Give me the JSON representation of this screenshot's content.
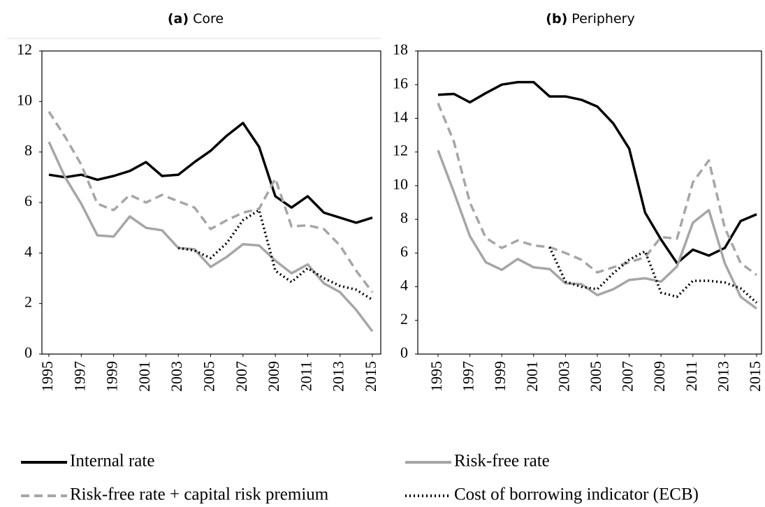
{
  "chart_data": [
    {
      "type": "line",
      "panel": "(a)",
      "title": "Core",
      "x": [
        1995,
        1996,
        1997,
        1998,
        1999,
        2000,
        2001,
        2002,
        2003,
        2004,
        2005,
        2006,
        2007,
        2008,
        2009,
        2010,
        2011,
        2012,
        2013,
        2014,
        2015
      ],
      "xlim": [
        1995,
        2015
      ],
      "xticks": [
        1995,
        1997,
        1999,
        2001,
        2003,
        2005,
        2007,
        2009,
        2011,
        2013,
        2015
      ],
      "ylim": [
        0,
        12
      ],
      "yticks": [
        0,
        2,
        4,
        6,
        8,
        10,
        12
      ],
      "series": [
        {
          "name": "Internal rate",
          "color": "#000000",
          "dash": "solid",
          "values": [
            7.1,
            7.0,
            7.1,
            6.9,
            7.05,
            7.25,
            7.6,
            7.05,
            7.1,
            7.6,
            8.05,
            8.65,
            9.15,
            8.2,
            6.25,
            5.8,
            6.25,
            5.6,
            5.4,
            5.2,
            5.4
          ]
        },
        {
          "name": "Risk-free rate",
          "color": "#a6a6a6",
          "dash": "solid",
          "values": [
            8.4,
            7.0,
            5.95,
            4.7,
            4.65,
            5.45,
            5.0,
            4.9,
            4.2,
            4.15,
            3.45,
            3.85,
            4.35,
            4.3,
            3.7,
            3.2,
            3.55,
            2.8,
            2.45,
            1.75,
            0.9
          ]
        },
        {
          "name": "Risk-free rate + capital risk premium",
          "color": "#a6a6a6",
          "dash": "dashed",
          "values": [
            9.6,
            8.6,
            7.5,
            5.95,
            5.7,
            6.3,
            6.0,
            6.3,
            6.05,
            5.8,
            4.95,
            5.3,
            5.6,
            5.75,
            6.95,
            5.05,
            5.1,
            4.95,
            4.3,
            3.3,
            2.45
          ]
        },
        {
          "name": "Cost of borrowing indicator (ECB)",
          "color": "#000000",
          "dash": "dotted",
          "values": [
            null,
            null,
            null,
            null,
            null,
            null,
            null,
            null,
            4.2,
            4.1,
            3.8,
            4.4,
            5.3,
            5.7,
            3.3,
            2.85,
            3.4,
            3.0,
            2.7,
            2.55,
            2.15
          ]
        }
      ]
    },
    {
      "type": "line",
      "panel": "(b)",
      "title": "Periphery",
      "x": [
        1995,
        1996,
        1997,
        1998,
        1999,
        2000,
        2001,
        2002,
        2003,
        2004,
        2005,
        2006,
        2007,
        2008,
        2009,
        2010,
        2011,
        2012,
        2013,
        2014,
        2015
      ],
      "xlim": [
        1995,
        2015
      ],
      "xticks": [
        1995,
        1997,
        1999,
        2001,
        2003,
        2005,
        2007,
        2009,
        2011,
        2013,
        2015
      ],
      "ylim": [
        0,
        18
      ],
      "yticks": [
        0,
        2,
        4,
        6,
        8,
        10,
        12,
        14,
        16,
        18
      ],
      "series": [
        {
          "name": "Internal rate",
          "color": "#000000",
          "dash": "solid",
          "values": [
            15.4,
            15.45,
            14.95,
            15.5,
            16.0,
            16.15,
            16.15,
            15.3,
            15.3,
            15.1,
            14.7,
            13.7,
            12.2,
            8.4,
            6.8,
            5.4,
            6.2,
            5.85,
            6.3,
            7.9,
            8.3
          ]
        },
        {
          "name": "Risk-free rate",
          "color": "#a6a6a6",
          "dash": "solid",
          "values": [
            12.1,
            9.6,
            7.0,
            5.45,
            5.0,
            5.65,
            5.15,
            5.05,
            4.2,
            4.15,
            3.5,
            3.85,
            4.4,
            4.5,
            4.3,
            5.2,
            7.8,
            8.55,
            5.4,
            3.4,
            2.7
          ]
        },
        {
          "name": "Risk-free rate + capital risk premium",
          "color": "#a6a6a6",
          "dash": "dashed",
          "values": [
            14.9,
            12.6,
            9.0,
            6.9,
            6.3,
            6.75,
            6.45,
            6.35,
            6.0,
            5.6,
            4.85,
            5.15,
            5.45,
            5.75,
            6.95,
            6.85,
            10.2,
            11.5,
            7.5,
            5.4,
            4.7
          ]
        },
        {
          "name": "Cost of borrowing indicator (ECB)",
          "color": "#000000",
          "dash": "dotted",
          "values": [
            null,
            null,
            null,
            null,
            null,
            null,
            null,
            6.35,
            4.3,
            4.0,
            3.85,
            4.8,
            5.6,
            6.1,
            3.65,
            3.4,
            4.35,
            4.35,
            4.25,
            3.9,
            3.05
          ]
        }
      ]
    }
  ]
}
